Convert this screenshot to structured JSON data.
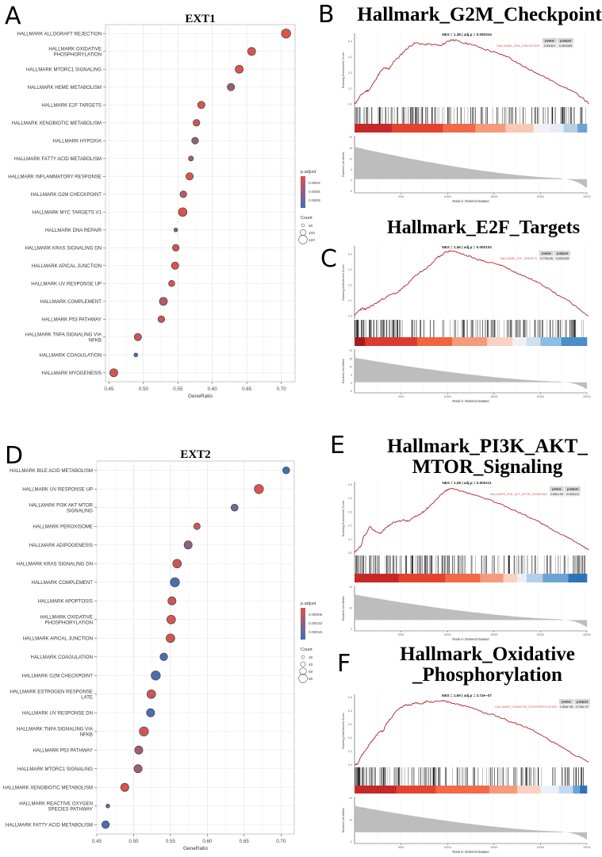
{
  "panels": {
    "A": "A",
    "B": "B",
    "C": "C",
    "D": "D",
    "E": "E",
    "F": "F"
  },
  "chart_data": [
    {
      "id": "A",
      "type": "scatter",
      "title": "EXT1",
      "xlabel": "GeneRatio",
      "xlim": [
        0.445,
        0.72
      ],
      "xticks": [
        0.45,
        0.5,
        0.55,
        0.6,
        0.65,
        0.7
      ],
      "xtick_labels": [
        "0.45",
        "0.50",
        "0.55",
        "0.60",
        "0.65",
        "0.70"
      ],
      "grid": true,
      "legend_position": "right",
      "color_legend": {
        "title": "p.adjust",
        "labels": [
          "0.0003",
          "0.0006",
          "0.0009"
        ],
        "low_color": "#d9534f",
        "high_color": "#3f6fb5"
      },
      "size_legend": {
        "title": "Count",
        "labels": [
          "80",
          "100",
          "120"
        ]
      },
      "categories": [
        "HALLMARK ALLOGRAFT REJECTION",
        "HALLMARK OXIDATIVE\nPHOSPHORYLATION",
        "HALLMARK MTORC1 SIGNALING",
        "HALLMARK HEME METABOLISM",
        "HALLMARK E2F TARGETS",
        "HALLMARK XENOBIOTIC METABOLISM",
        "HALLMARK HYPOXIA",
        "HALLMARK FATTY ACID METABOLISM",
        "HALLMARK INFLAMMATORY RESPONSE",
        "HALLMARK G2M CHECKPOINT",
        "HALLMARK MYC TARGETS V1",
        "HALLMARK DNA REPAIR",
        "HALLMARK KRAS SIGNALING DN",
        "HALLMARK APICAL JUNCTION",
        "HALLMARK UV RESPONSE UP",
        "HALLMARK COMPLEMENT",
        "HALLMARK P53 PATHWAY",
        "HALLMARK TNFA SIGNALING VIA\nNFKB",
        "HALLMARK COAGULATION",
        "HALLMARK MYOGENESIS"
      ],
      "gene_ratio": [
        0.707,
        0.657,
        0.639,
        0.627,
        0.584,
        0.577,
        0.575,
        0.569,
        0.567,
        0.558,
        0.557,
        0.547,
        0.547,
        0.546,
        0.541,
        0.529,
        0.526,
        0.492,
        0.489,
        0.457
      ],
      "p_adjust": [
        0.0002,
        0.0002,
        0.0002,
        0.0006,
        0.0002,
        0.0003,
        0.0006,
        0.0006,
        0.0002,
        0.0004,
        0.0002,
        0.0007,
        0.0003,
        0.0002,
        0.0002,
        0.0004,
        0.0003,
        0.0003,
        0.0011,
        0.0002
      ],
      "count": [
        120,
        110,
        110,
        105,
        105,
        100,
        100,
        85,
        105,
        100,
        115,
        75,
        100,
        105,
        95,
        110,
        100,
        105,
        75,
        110
      ]
    },
    {
      "id": "D",
      "type": "scatter",
      "title": "EXT2",
      "xlabel": "GeneRatio",
      "xlim": [
        0.45,
        0.718
      ],
      "xticks": [
        0.45,
        0.5,
        0.55,
        0.6,
        0.65,
        0.7
      ],
      "xtick_labels": [
        "0.45",
        "0.50",
        "0.55",
        "0.60",
        "0.65",
        "0.70"
      ],
      "grid": true,
      "legend_position": "right",
      "color_legend": {
        "title": "p.adjust",
        "labels": [
          "0.00005",
          "0.00010",
          "0.00015"
        ],
        "low_color": "#d9534f",
        "high_color": "#3f6fb5"
      },
      "size_legend": {
        "title": "Count",
        "labels": [
          "20",
          "40",
          "60",
          "80"
        ]
      },
      "categories": [
        "HALLMARK BILE ACID METABOLISM",
        "HALLMARK UV RESPONSE UP",
        "HALLMARK PI3K AKT MTOR\nSIGNALING",
        "HALLMARK PEROXISOME",
        "HALLMARK ADIPOGENESIS",
        "HALLMARK KRAS SIGNALING DN",
        "HALLMARK COMPLEMENT",
        "HALLMARK APOPTOSIS",
        "HALLMARK OXIDATIVE\nPHOSPHORYLATION",
        "HALLMARK APICAL JUNCTION",
        "HALLMARK COAGULATION",
        "HALLMARK G2M CHECKPOINT",
        "HALLMARK ESTROGEN RESPONSE\nLATE",
        "HALLMARK UV RESPONSE DN",
        "HALLMARK TNFA SIGNALING VIA\nNFKB",
        "HALLMARK P53 PATHWAY",
        "HALLMARK MTORC1 SIGNALING",
        "HALLMARK XENOBIOTIC METABOLISM",
        "HALLMARK REACTIVE OXYGEN\nSPECIES PATHWAY",
        "HALLMARK FATTY ACID METABOLISM"
      ],
      "gene_ratio": [
        0.707,
        0.67,
        0.637,
        0.586,
        0.574,
        0.559,
        0.556,
        0.552,
        0.551,
        0.55,
        0.541,
        0.53,
        0.524,
        0.523,
        0.514,
        0.507,
        0.506,
        0.488,
        0.465,
        0.462
      ],
      "p_adjust": [
        0.00017,
        3e-05,
        0.00012,
        4e-05,
        0.0001,
        4e-05,
        0.00016,
        4e-05,
        3e-05,
        4e-05,
        0.00016,
        0.00016,
        4e-05,
        0.00016,
        4e-05,
        8e-05,
        8e-05,
        3e-05,
        0.00014,
        0.00016
      ],
      "count": [
        50,
        70,
        50,
        45,
        60,
        65,
        70,
        60,
        65,
        65,
        55,
        70,
        65,
        60,
        70,
        60,
        60,
        60,
        20,
        55
      ]
    },
    {
      "id": "B",
      "type": "line",
      "title": "Hallmark_G2M_Checkpoint",
      "nes_label": "NES = 1.38",
      "adjp_label": "adj.p = 0.000316",
      "gene_set": "HALLMARK_G2M_CHECKPOINT",
      "table_headers": [
        "pvalue",
        "p.adjust"
      ],
      "pvalue": "0.000101",
      "p_adjust": "0.0003155",
      "ylabel_top": "Running Enrichment Score",
      "ylabel_bottom": "Ranked List Metric",
      "xlabel": "Rank in Ordered Dataset",
      "xticks": [
        "5000",
        "10000",
        "15000",
        "20000",
        "25000"
      ],
      "xmax": 25000,
      "es_yticks": [
        "0.0",
        "0.1",
        "0.2",
        "0.3",
        "0.4"
      ],
      "es_ylim": [
        -0.02,
        0.45
      ],
      "metric_yticks": [
        "20",
        "15",
        "10",
        "5",
        "0",
        "-5"
      ],
      "es_curve": [
        [
          0,
          0.0
        ],
        [
          300,
          0.02
        ],
        [
          700,
          0.06
        ],
        [
          1200,
          0.08
        ],
        [
          1600,
          0.09
        ],
        [
          2200,
          0.15
        ],
        [
          2700,
          0.2
        ],
        [
          3200,
          0.23
        ],
        [
          3700,
          0.22
        ],
        [
          4200,
          0.27
        ],
        [
          4800,
          0.3
        ],
        [
          5400,
          0.34
        ],
        [
          6000,
          0.37
        ],
        [
          6600,
          0.39
        ],
        [
          7500,
          0.38
        ],
        [
          8500,
          0.38
        ],
        [
          9300,
          0.37
        ],
        [
          10000,
          0.4
        ],
        [
          10600,
          0.41
        ],
        [
          11500,
          0.39
        ],
        [
          12500,
          0.38
        ],
        [
          13500,
          0.36
        ],
        [
          14500,
          0.34
        ],
        [
          15500,
          0.32
        ],
        [
          16500,
          0.3
        ],
        [
          17500,
          0.26
        ],
        [
          18500,
          0.23
        ],
        [
          19500,
          0.2
        ],
        [
          20500,
          0.17
        ],
        [
          21500,
          0.14
        ],
        [
          22500,
          0.11
        ],
        [
          23500,
          0.08
        ],
        [
          24500,
          0.04
        ],
        [
          25200,
          0.0
        ]
      ],
      "color_bands": [
        "#c62828",
        "#e4432f",
        "#f26a48",
        "#f59a7a",
        "#f9c9b5",
        "#f3eff5",
        "#e3ebf6",
        "#b5cfe6",
        "#6aa3d4",
        "#2f72b8"
      ],
      "band_breaks": [
        0,
        0.16,
        0.38,
        0.52,
        0.65,
        0.77,
        0.84,
        0.9,
        0.96,
        1.0
      ],
      "hits_density": "dense-left"
    },
    {
      "id": "C",
      "type": "line",
      "title": "Hallmark_E2F_Targets",
      "nes_label": "NES = 1.45",
      "adjp_label": "adj.p = 0.000134",
      "gene_set": "HALLMARK_E2F_TARGETS",
      "table_headers": [
        "pvalue",
        "p.adjust"
      ],
      "pvalue": "2.779e-05",
      "p_adjust": "0.0001339",
      "ylabel_top": "Running Enrichment Score",
      "ylabel_bottom": "Ranked List Metric",
      "xlabel": "Rank in Ordered Dataset",
      "xticks": [
        "5000",
        "10000",
        "15000",
        "20000",
        "25000"
      ],
      "xmax": 25000,
      "es_yticks": [
        "0.0",
        "0.1",
        "0.2",
        "0.3",
        "0.4"
      ],
      "es_ylim": [
        -0.02,
        0.45
      ],
      "metric_yticks": [
        "20",
        "15",
        "10",
        "5",
        "0",
        "-5"
      ],
      "es_curve": [
        [
          0,
          0.0
        ],
        [
          400,
          0.03
        ],
        [
          800,
          0.05
        ],
        [
          1200,
          0.04
        ],
        [
          1700,
          0.06
        ],
        [
          2300,
          0.08
        ],
        [
          2800,
          0.1
        ],
        [
          3400,
          0.12
        ],
        [
          4000,
          0.14
        ],
        [
          4600,
          0.15
        ],
        [
          5200,
          0.18
        ],
        [
          5800,
          0.21
        ],
        [
          6400,
          0.25
        ],
        [
          7000,
          0.28
        ],
        [
          7600,
          0.3
        ],
        [
          8200,
          0.33
        ],
        [
          8800,
          0.37
        ],
        [
          9300,
          0.39
        ],
        [
          9800,
          0.41
        ],
        [
          10400,
          0.42
        ],
        [
          11000,
          0.41
        ],
        [
          12000,
          0.39
        ],
        [
          13000,
          0.37
        ],
        [
          14000,
          0.35
        ],
        [
          15000,
          0.34
        ],
        [
          16000,
          0.32
        ],
        [
          17000,
          0.29
        ],
        [
          18000,
          0.26
        ],
        [
          19000,
          0.24
        ],
        [
          20000,
          0.21
        ],
        [
          21000,
          0.17
        ],
        [
          22000,
          0.13
        ],
        [
          23000,
          0.1
        ],
        [
          24000,
          0.05
        ],
        [
          25200,
          0.0
        ]
      ],
      "color_bands": [
        "#a61c1c",
        "#dc3a2f",
        "#f0643f",
        "#f59a7a",
        "#f9d2c2",
        "#f3eff5",
        "#d0e0f0",
        "#8dbde2",
        "#4a8fcb",
        "#2f72b8"
      ],
      "band_breaks": [
        0,
        0.045,
        0.27,
        0.42,
        0.57,
        0.68,
        0.74,
        0.8,
        0.89,
        1.0
      ],
      "hits_density": "dense-left"
    },
    {
      "id": "E",
      "type": "line",
      "title": "Hallmark_PI3K_AKT_\nMTOR_Signaling",
      "nes_label": "NES = 1.55",
      "adjp_label": "adj.p = 0.000111",
      "gene_set": "HALLMARK_PI3K_AKT_MTOR_SIGNALING",
      "table_headers": [
        "pvalue",
        "p.adjust"
      ],
      "pvalue": "2.891e-05",
      "p_adjust": "0.0001112",
      "ylabel_top": "Running Enrichment Score",
      "ylabel_bottom": "Ranked List Metric",
      "xlabel": "Rank in Ordered Dataset",
      "xticks": [
        "5000",
        "10000",
        "15000",
        "20000",
        "25000"
      ],
      "xmax": 25000,
      "es_yticks": [
        "0.0",
        "0.1",
        "0.2",
        "0.3",
        "0.4",
        "0.5"
      ],
      "es_ylim": [
        -0.02,
        0.52
      ],
      "metric_yticks": [
        "20",
        "10",
        "0"
      ],
      "es_curve": [
        [
          0,
          0.0
        ],
        [
          300,
          0.02
        ],
        [
          700,
          0.05
        ],
        [
          1000,
          0.12
        ],
        [
          1300,
          0.14
        ],
        [
          1600,
          0.19
        ],
        [
          2200,
          0.16
        ],
        [
          2800,
          0.14
        ],
        [
          3300,
          0.18
        ],
        [
          3900,
          0.21
        ],
        [
          4600,
          0.23
        ],
        [
          5200,
          0.24
        ],
        [
          5800,
          0.23
        ],
        [
          6400,
          0.26
        ],
        [
          7000,
          0.28
        ],
        [
          7600,
          0.31
        ],
        [
          8200,
          0.35
        ],
        [
          8800,
          0.39
        ],
        [
          9400,
          0.43
        ],
        [
          9900,
          0.46
        ],
        [
          10500,
          0.47
        ],
        [
          11500,
          0.45
        ],
        [
          12500,
          0.43
        ],
        [
          13500,
          0.41
        ],
        [
          14500,
          0.39
        ],
        [
          15500,
          0.36
        ],
        [
          16500,
          0.33
        ],
        [
          17500,
          0.3
        ],
        [
          18500,
          0.27
        ],
        [
          19500,
          0.24
        ],
        [
          20500,
          0.2
        ],
        [
          21500,
          0.16
        ],
        [
          22500,
          0.13
        ],
        [
          23500,
          0.09
        ],
        [
          24500,
          0.05
        ],
        [
          25200,
          0.02
        ]
      ],
      "color_bands": [
        "#c62828",
        "#e4432f",
        "#f26a48",
        "#f59a7a",
        "#f9d2c2",
        "#e8eff8",
        "#b5cfe6",
        "#6aa3d4",
        "#2f72b8"
      ],
      "band_breaks": [
        0,
        0.19,
        0.39,
        0.54,
        0.64,
        0.7,
        0.74,
        0.81,
        0.92,
        1.0
      ],
      "hits_density": "dense-left"
    },
    {
      "id": "F",
      "type": "line",
      "title": "Hallmark_Oxidative\n_Phosphorylation",
      "nes_label": "NES = 1.59",
      "adjp_label": "adj.p = 3.73e−07",
      "gene_set": "HALLMARK_OXIDATIVE_PHOSPHORYLATION",
      "table_headers": [
        "pvalue",
        "p.adjust"
      ],
      "pvalue": "1.493e−08",
      "p_adjust": "3.732e−07",
      "ylabel_top": "Running Enrichment Score",
      "ylabel_bottom": "Ranked List Metric",
      "xlabel": "Rank in Ordered Dataset",
      "xticks": [
        "5000",
        "10000",
        "15000",
        "20000",
        "25000"
      ],
      "xmax": 25000,
      "es_yticks": [
        "0.0",
        "0.1",
        "0.2",
        "0.3",
        "0.4",
        "0.5"
      ],
      "es_ylim": [
        -0.02,
        0.52
      ],
      "metric_yticks": [
        "20",
        "10",
        "0"
      ],
      "es_curve": [
        [
          0,
          0.0
        ],
        [
          400,
          0.01
        ],
        [
          700,
          0.06
        ],
        [
          1100,
          0.1
        ],
        [
          1600,
          0.15
        ],
        [
          2100,
          0.19
        ],
        [
          2600,
          0.24
        ],
        [
          3100,
          0.25
        ],
        [
          3500,
          0.31
        ],
        [
          3900,
          0.34
        ],
        [
          4400,
          0.39
        ],
        [
          4900,
          0.42
        ],
        [
          5500,
          0.44
        ],
        [
          6000,
          0.44
        ],
        [
          6600,
          0.46
        ],
        [
          7200,
          0.45
        ],
        [
          7800,
          0.47
        ],
        [
          8400,
          0.46
        ],
        [
          9000,
          0.47
        ],
        [
          9600,
          0.47
        ],
        [
          10200,
          0.46
        ],
        [
          11000,
          0.45
        ],
        [
          12000,
          0.43
        ],
        [
          13000,
          0.41
        ],
        [
          14000,
          0.38
        ],
        [
          15000,
          0.37
        ],
        [
          16000,
          0.34
        ],
        [
          17000,
          0.31
        ],
        [
          18000,
          0.29
        ],
        [
          19000,
          0.26
        ],
        [
          20000,
          0.22
        ],
        [
          21000,
          0.18
        ],
        [
          22000,
          0.14
        ],
        [
          23000,
          0.1
        ],
        [
          24000,
          0.06
        ],
        [
          25200,
          0.02
        ]
      ],
      "color_bands": [
        "#c62828",
        "#e4432f",
        "#f26a48",
        "#f59a7a",
        "#f9d2c2",
        "#ecf0f8",
        "#c5d9ec",
        "#6aa3d4",
        "#2f72b8"
      ],
      "band_breaks": [
        0,
        0.18,
        0.35,
        0.58,
        0.7,
        0.8,
        0.88,
        0.94,
        0.97,
        1.0
      ],
      "hits_density": "dense-left"
    }
  ]
}
